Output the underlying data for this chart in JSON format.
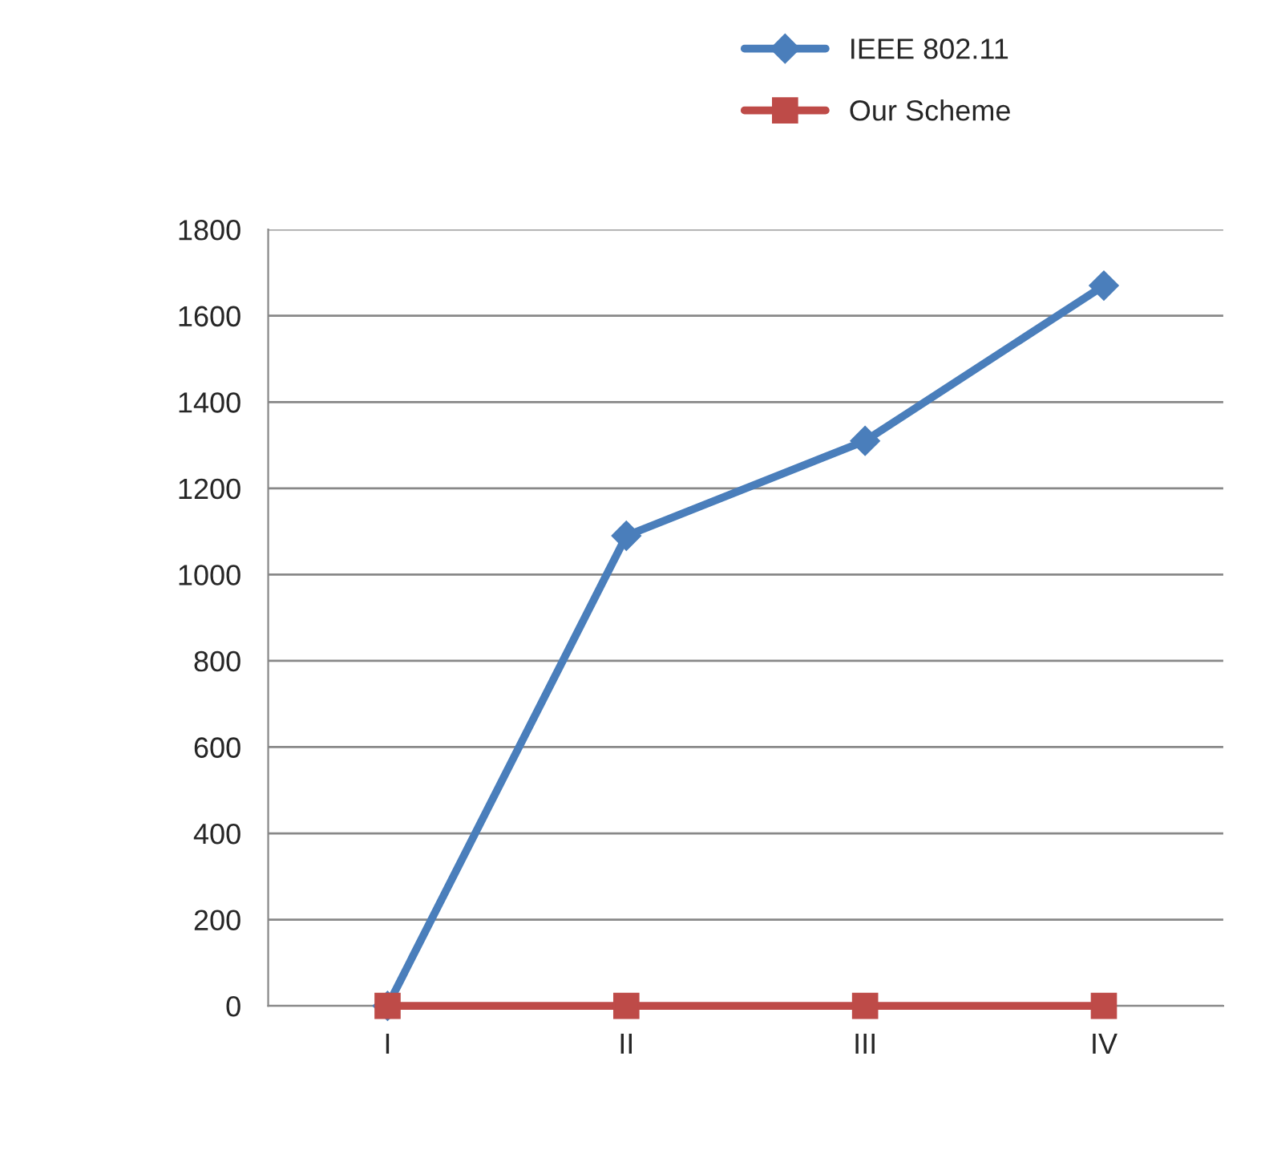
{
  "chart_data": {
    "type": "line",
    "categories": [
      "I",
      "II",
      "III",
      "IV"
    ],
    "series": [
      {
        "name": "IEEE 802.11",
        "color": "#4a7ebb",
        "marker": "diamond",
        "values": [
          0,
          1090,
          1310,
          1670
        ]
      },
      {
        "name": "Our Scheme",
        "color": "#be4b48",
        "marker": "square",
        "values": [
          0,
          0,
          0,
          0
        ]
      }
    ],
    "ylim": [
      0,
      1800
    ],
    "yticks": [
      0,
      200,
      400,
      600,
      800,
      1000,
      1200,
      1400,
      1600,
      1800
    ],
    "grid": "y",
    "legend": "top right",
    "line_style": "solid"
  }
}
